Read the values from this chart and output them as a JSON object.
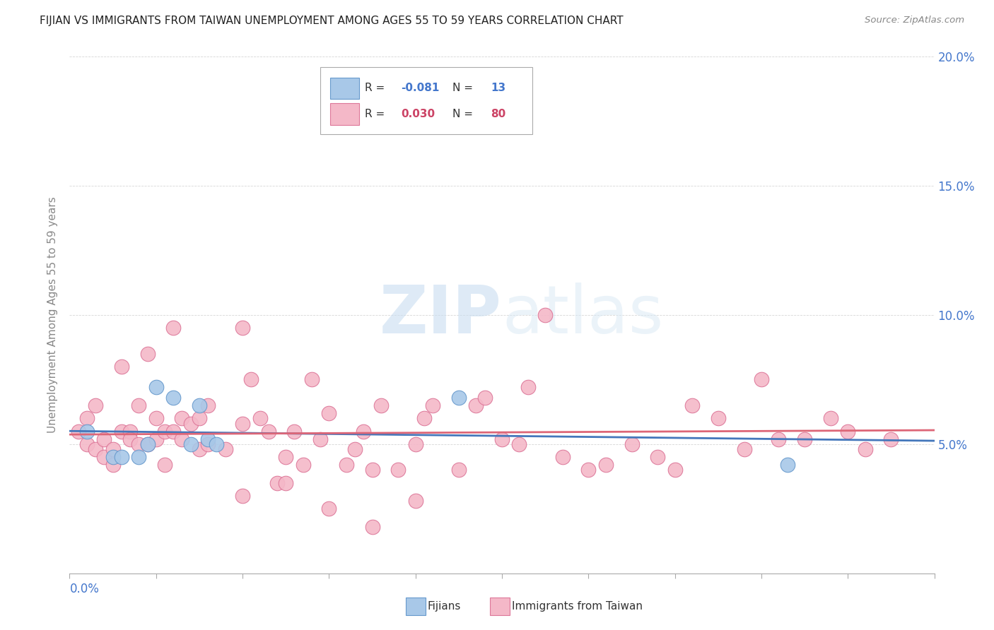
{
  "title": "FIJIAN VS IMMIGRANTS FROM TAIWAN UNEMPLOYMENT AMONG AGES 55 TO 59 YEARS CORRELATION CHART",
  "source": "Source: ZipAtlas.com",
  "ylabel": "Unemployment Among Ages 55 to 59 years",
  "xlim": [
    0.0,
    0.1
  ],
  "ylim": [
    0.0,
    0.2
  ],
  "yticks": [
    0.0,
    0.05,
    0.1,
    0.15,
    0.2
  ],
  "ytick_labels": [
    "",
    "5.0%",
    "10.0%",
    "15.0%",
    "20.0%"
  ],
  "fijian_R": -0.081,
  "fijian_N": 13,
  "taiwan_R": 0.03,
  "taiwan_N": 80,
  "fijian_color": "#a8c8e8",
  "fijian_edge_color": "#6699cc",
  "taiwan_color": "#f4b8c8",
  "taiwan_edge_color": "#dd7799",
  "trend_fijian_color": "#4477bb",
  "trend_taiwan_color": "#dd6677",
  "watermark": "ZIPatlas",
  "fijian_x": [
    0.002,
    0.005,
    0.006,
    0.008,
    0.009,
    0.01,
    0.012,
    0.014,
    0.015,
    0.016,
    0.017,
    0.045,
    0.083
  ],
  "fijian_y": [
    0.055,
    0.045,
    0.045,
    0.045,
    0.05,
    0.072,
    0.068,
    0.05,
    0.065,
    0.052,
    0.05,
    0.068,
    0.042
  ],
  "taiwan_x": [
    0.001,
    0.002,
    0.002,
    0.003,
    0.003,
    0.004,
    0.004,
    0.005,
    0.005,
    0.006,
    0.006,
    0.007,
    0.007,
    0.008,
    0.008,
    0.009,
    0.009,
    0.01,
    0.01,
    0.011,
    0.011,
    0.012,
    0.012,
    0.013,
    0.013,
    0.014,
    0.015,
    0.015,
    0.016,
    0.016,
    0.018,
    0.02,
    0.02,
    0.021,
    0.022,
    0.023,
    0.024,
    0.025,
    0.026,
    0.027,
    0.028,
    0.029,
    0.03,
    0.032,
    0.033,
    0.034,
    0.035,
    0.036,
    0.038,
    0.04,
    0.041,
    0.042,
    0.045,
    0.047,
    0.048,
    0.05,
    0.052,
    0.053,
    0.055,
    0.057,
    0.06,
    0.062,
    0.065,
    0.068,
    0.07,
    0.072,
    0.075,
    0.078,
    0.08,
    0.082,
    0.085,
    0.088,
    0.09,
    0.092,
    0.095,
    0.02,
    0.025,
    0.03,
    0.035,
    0.04
  ],
  "taiwan_y": [
    0.055,
    0.06,
    0.05,
    0.048,
    0.065,
    0.045,
    0.052,
    0.042,
    0.048,
    0.08,
    0.055,
    0.055,
    0.052,
    0.065,
    0.05,
    0.085,
    0.05,
    0.06,
    0.052,
    0.055,
    0.042,
    0.095,
    0.055,
    0.052,
    0.06,
    0.058,
    0.06,
    0.048,
    0.065,
    0.05,
    0.048,
    0.095,
    0.058,
    0.075,
    0.06,
    0.055,
    0.035,
    0.035,
    0.055,
    0.042,
    0.075,
    0.052,
    0.062,
    0.042,
    0.048,
    0.055,
    0.04,
    0.065,
    0.04,
    0.05,
    0.06,
    0.065,
    0.04,
    0.065,
    0.068,
    0.052,
    0.05,
    0.072,
    0.1,
    0.045,
    0.04,
    0.042,
    0.05,
    0.045,
    0.04,
    0.065,
    0.06,
    0.048,
    0.075,
    0.052,
    0.052,
    0.06,
    0.055,
    0.048,
    0.052,
    0.03,
    0.045,
    0.025,
    0.018,
    0.028
  ]
}
